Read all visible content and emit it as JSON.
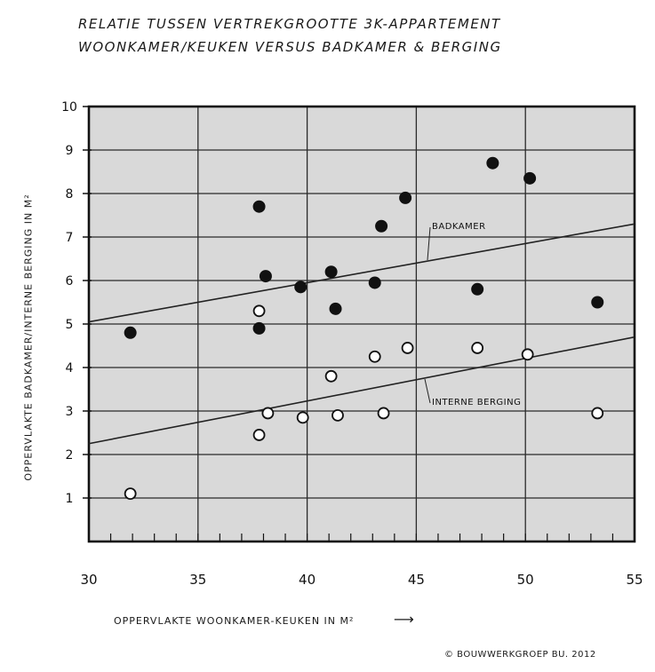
{
  "header": {
    "title_line1": "RELATIE TUSSEN VERTREKGROOTTE 3K-APPARTEMENT",
    "title_line2": "WOONKAMER/KEUKEN VERSUS BADKAMER & BERGING"
  },
  "footer": {
    "credit": "© BOUWWERKGROEP BU. 2012"
  },
  "chart_data": {
    "type": "scatter",
    "title": "RELATIE TUSSEN VERTREKGROOTTE 3K-APPARTEMENT WOONKAMER/KEUKEN VERSUS BADKAMER & BERGING",
    "xlabel": "OPPERVLAKTE WOONKAMER-KEUKEN IN M²",
    "ylabel": "OPPERVLAKTE BADKAMER/INTERNE BERGING IN M²",
    "xlim": [
      30,
      55
    ],
    "ylim": [
      0,
      10
    ],
    "xticks": [
      "30",
      "35",
      "40",
      "45",
      "50",
      "55"
    ],
    "yticks": [
      "1",
      "2",
      "3",
      "4",
      "5",
      "6",
      "7",
      "8",
      "9",
      "10"
    ],
    "grid": true,
    "series": [
      {
        "name": "BADKAMER",
        "marker": "filled-circle",
        "color": "#111111",
        "points": [
          {
            "x": 31.9,
            "y": 4.8
          },
          {
            "x": 37.8,
            "y": 4.9
          },
          {
            "x": 37.8,
            "y": 7.7
          },
          {
            "x": 38.1,
            "y": 6.1
          },
          {
            "x": 39.7,
            "y": 5.85
          },
          {
            "x": 41.1,
            "y": 6.2
          },
          {
            "x": 41.3,
            "y": 5.35
          },
          {
            "x": 43.1,
            "y": 5.95
          },
          {
            "x": 43.4,
            "y": 7.25
          },
          {
            "x": 44.5,
            "y": 7.9
          },
          {
            "x": 47.8,
            "y": 5.8
          },
          {
            "x": 48.5,
            "y": 8.7
          },
          {
            "x": 50.2,
            "y": 8.35
          },
          {
            "x": 53.3,
            "y": 5.5
          }
        ]
      },
      {
        "name": "INTERNE BERGING",
        "marker": "open-circle",
        "color": "#111111",
        "points": [
          {
            "x": 31.9,
            "y": 1.1
          },
          {
            "x": 37.8,
            "y": 2.45
          },
          {
            "x": 37.8,
            "y": 5.3
          },
          {
            "x": 38.2,
            "y": 2.95
          },
          {
            "x": 39.8,
            "y": 2.85
          },
          {
            "x": 41.1,
            "y": 3.8
          },
          {
            "x": 41.4,
            "y": 2.9
          },
          {
            "x": 43.1,
            "y": 4.25
          },
          {
            "x": 43.5,
            "y": 2.95
          },
          {
            "x": 44.6,
            "y": 4.45
          },
          {
            "x": 47.8,
            "y": 4.45
          },
          {
            "x": 50.1,
            "y": 4.3
          },
          {
            "x": 53.3,
            "y": 2.95
          }
        ]
      }
    ],
    "trendlines": [
      {
        "label": "BADKAMER",
        "from": {
          "x": 30,
          "y": 5.05
        },
        "to": {
          "x": 55,
          "y": 7.3
        }
      },
      {
        "label": "INTERNE BERGING",
        "from": {
          "x": 30,
          "y": 2.25
        },
        "to": {
          "x": 55,
          "y": 4.7
        }
      }
    ]
  }
}
